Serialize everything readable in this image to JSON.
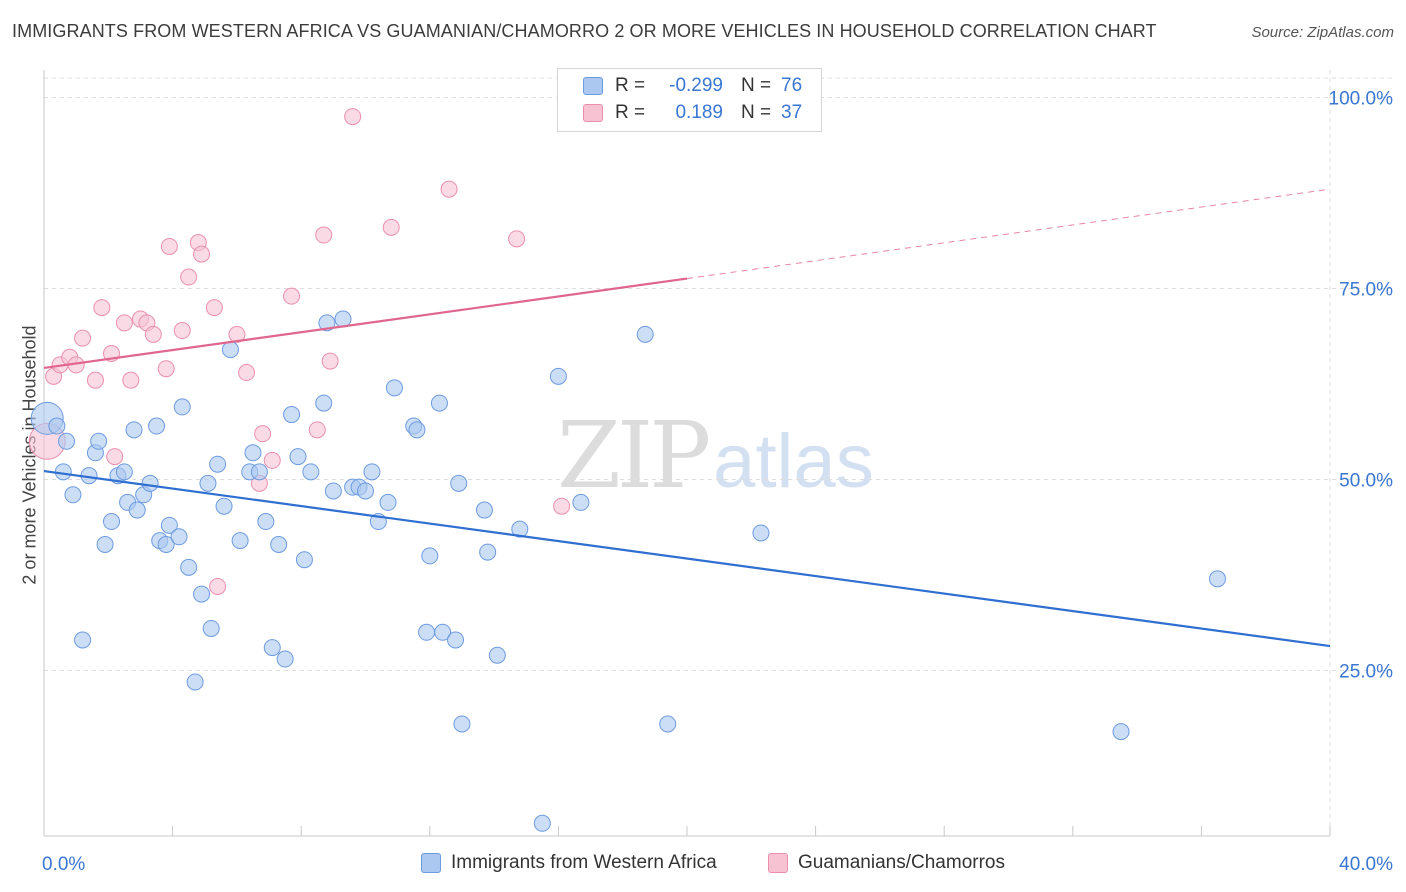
{
  "title": "IMMIGRANTS FROM WESTERN AFRICA VS GUAMANIAN/CHAMORRO 2 OR MORE VEHICLES IN HOUSEHOLD CORRELATION CHART",
  "source": "Source: ZipAtlas.com",
  "watermark": {
    "zip": "ZIP",
    "atlas": "atlas"
  },
  "legend": {
    "rows": [
      {
        "r_label": "R =",
        "r_value": "-0.299",
        "n_label": "N =",
        "n_value": "76"
      },
      {
        "r_label": "R =",
        "r_value": "0.189",
        "n_label": "N =",
        "n_value": "37"
      }
    ]
  },
  "colors": {
    "blue_fill": "#aac8f0",
    "blue_stroke": "#6d9be0",
    "blue_line": "#2f6fd1",
    "pink_fill": "#f7c3d3",
    "pink_stroke": "#ea8fae",
    "pink_line": "#e0668f",
    "tick_text": "#3a77d2",
    "grid": "#dddddd"
  },
  "chart_data": {
    "type": "scatter",
    "title": "IMMIGRANTS FROM WESTERN AFRICA VS GUAMANIAN/CHAMORRO 2 OR MORE VEHICLES IN HOUSEHOLD CORRELATION CHART",
    "xlabel": "",
    "ylabel": "2 or more Vehicles in Household",
    "xlim": [
      0,
      40
    ],
    "ylim": [
      0,
      105
    ],
    "x_tick_labels": [
      "0.0%",
      "40.0%"
    ],
    "y_tick_labels": [
      "100.0%",
      "75.0%",
      "50.0%",
      "25.0%"
    ],
    "y_ticks": [
      100,
      75,
      50,
      25
    ],
    "grid": true,
    "legend_position": "top-center",
    "series": [
      {
        "name": "Immigrants from Western Africa",
        "color": "blue",
        "points": [
          [
            0.1,
            58
          ],
          [
            0.4,
            57
          ],
          [
            0.6,
            51
          ],
          [
            0.7,
            55
          ],
          [
            0.9,
            48
          ],
          [
            1.2,
            29
          ],
          [
            1.4,
            50.5
          ],
          [
            1.6,
            53.5
          ],
          [
            1.7,
            55
          ],
          [
            1.9,
            41.5
          ],
          [
            2.1,
            44.5
          ],
          [
            2.3,
            50.5
          ],
          [
            2.5,
            51
          ],
          [
            2.6,
            47
          ],
          [
            2.8,
            56.5
          ],
          [
            2.9,
            46
          ],
          [
            3.1,
            48
          ],
          [
            3.3,
            49.5
          ],
          [
            3.5,
            57
          ],
          [
            3.6,
            42
          ],
          [
            3.8,
            41.5
          ],
          [
            3.9,
            44
          ],
          [
            4.2,
            42.5
          ],
          [
            4.3,
            59.5
          ],
          [
            4.5,
            38.5
          ],
          [
            4.7,
            23.5
          ],
          [
            4.9,
            35
          ],
          [
            5.1,
            49.5
          ],
          [
            5.2,
            30.5
          ],
          [
            5.4,
            52
          ],
          [
            5.6,
            46.5
          ],
          [
            5.8,
            67
          ],
          [
            6.1,
            42
          ],
          [
            6.4,
            51
          ],
          [
            6.5,
            53.5
          ],
          [
            6.7,
            51
          ],
          [
            6.9,
            44.5
          ],
          [
            7.1,
            28
          ],
          [
            7.3,
            41.5
          ],
          [
            7.5,
            26.5
          ],
          [
            7.7,
            58.5
          ],
          [
            7.9,
            53
          ],
          [
            8.1,
            39.5
          ],
          [
            8.3,
            51
          ],
          [
            8.7,
            60
          ],
          [
            8.8,
            70.5
          ],
          [
            9.0,
            48.5
          ],
          [
            9.3,
            71
          ],
          [
            9.6,
            49
          ],
          [
            9.8,
            49
          ],
          [
            10.0,
            48.5
          ],
          [
            10.2,
            51
          ],
          [
            10.4,
            44.5
          ],
          [
            10.7,
            47
          ],
          [
            10.9,
            62
          ],
          [
            11.5,
            57
          ],
          [
            11.6,
            56.5
          ],
          [
            11.9,
            30
          ],
          [
            12.0,
            40
          ],
          [
            12.3,
            60
          ],
          [
            12.4,
            30
          ],
          [
            12.8,
            29
          ],
          [
            12.9,
            49.5
          ],
          [
            13.0,
            18
          ],
          [
            13.7,
            46
          ],
          [
            13.8,
            40.5
          ],
          [
            14.1,
            27
          ],
          [
            14.8,
            43.5
          ],
          [
            15.5,
            5
          ],
          [
            16.0,
            63.5
          ],
          [
            16.7,
            47
          ],
          [
            18.7,
            69
          ],
          [
            19.4,
            18
          ],
          [
            22.3,
            43
          ],
          [
            33.5,
            17
          ],
          [
            36.5,
            37
          ]
        ],
        "trend": {
          "x": [
            0,
            40
          ],
          "y": [
            51.1,
            28.2
          ]
        }
      },
      {
        "name": "Guamanians/Chamorros",
        "color": "pink",
        "points": [
          [
            0.1,
            55
          ],
          [
            0.3,
            63.5
          ],
          [
            0.5,
            65
          ],
          [
            0.8,
            66
          ],
          [
            1.0,
            65
          ],
          [
            1.2,
            68.5
          ],
          [
            1.6,
            63
          ],
          [
            1.8,
            72.5
          ],
          [
            2.1,
            66.5
          ],
          [
            2.2,
            53
          ],
          [
            2.5,
            70.5
          ],
          [
            2.7,
            63
          ],
          [
            3.0,
            71
          ],
          [
            3.2,
            70.5
          ],
          [
            3.4,
            69
          ],
          [
            3.8,
            64.5
          ],
          [
            3.9,
            80.5
          ],
          [
            4.3,
            69.5
          ],
          [
            4.5,
            76.5
          ],
          [
            4.8,
            81
          ],
          [
            4.9,
            79.5
          ],
          [
            5.3,
            72.5
          ],
          [
            5.4,
            36
          ],
          [
            6.0,
            69
          ],
          [
            6.3,
            64
          ],
          [
            6.7,
            49.5
          ],
          [
            6.8,
            56
          ],
          [
            7.1,
            52.5
          ],
          [
            7.7,
            74
          ],
          [
            8.5,
            56.5
          ],
          [
            8.7,
            82
          ],
          [
            8.9,
            65.5
          ],
          [
            9.6,
            97.5
          ],
          [
            10.8,
            83
          ],
          [
            12.6,
            88
          ],
          [
            14.7,
            81.5
          ],
          [
            16.1,
            46.5
          ]
        ],
        "trend": {
          "x": [
            0,
            20
          ],
          "y": [
            64.6,
            76.3
          ]
        },
        "trend_extension": {
          "x": [
            20,
            40
          ],
          "y": [
            76.3,
            88
          ]
        }
      }
    ]
  },
  "bottom_legend": [
    {
      "label": "Immigrants from Western Africa",
      "color": "blue"
    },
    {
      "label": "Guamanians/Chamorros",
      "color": "pink"
    }
  ]
}
